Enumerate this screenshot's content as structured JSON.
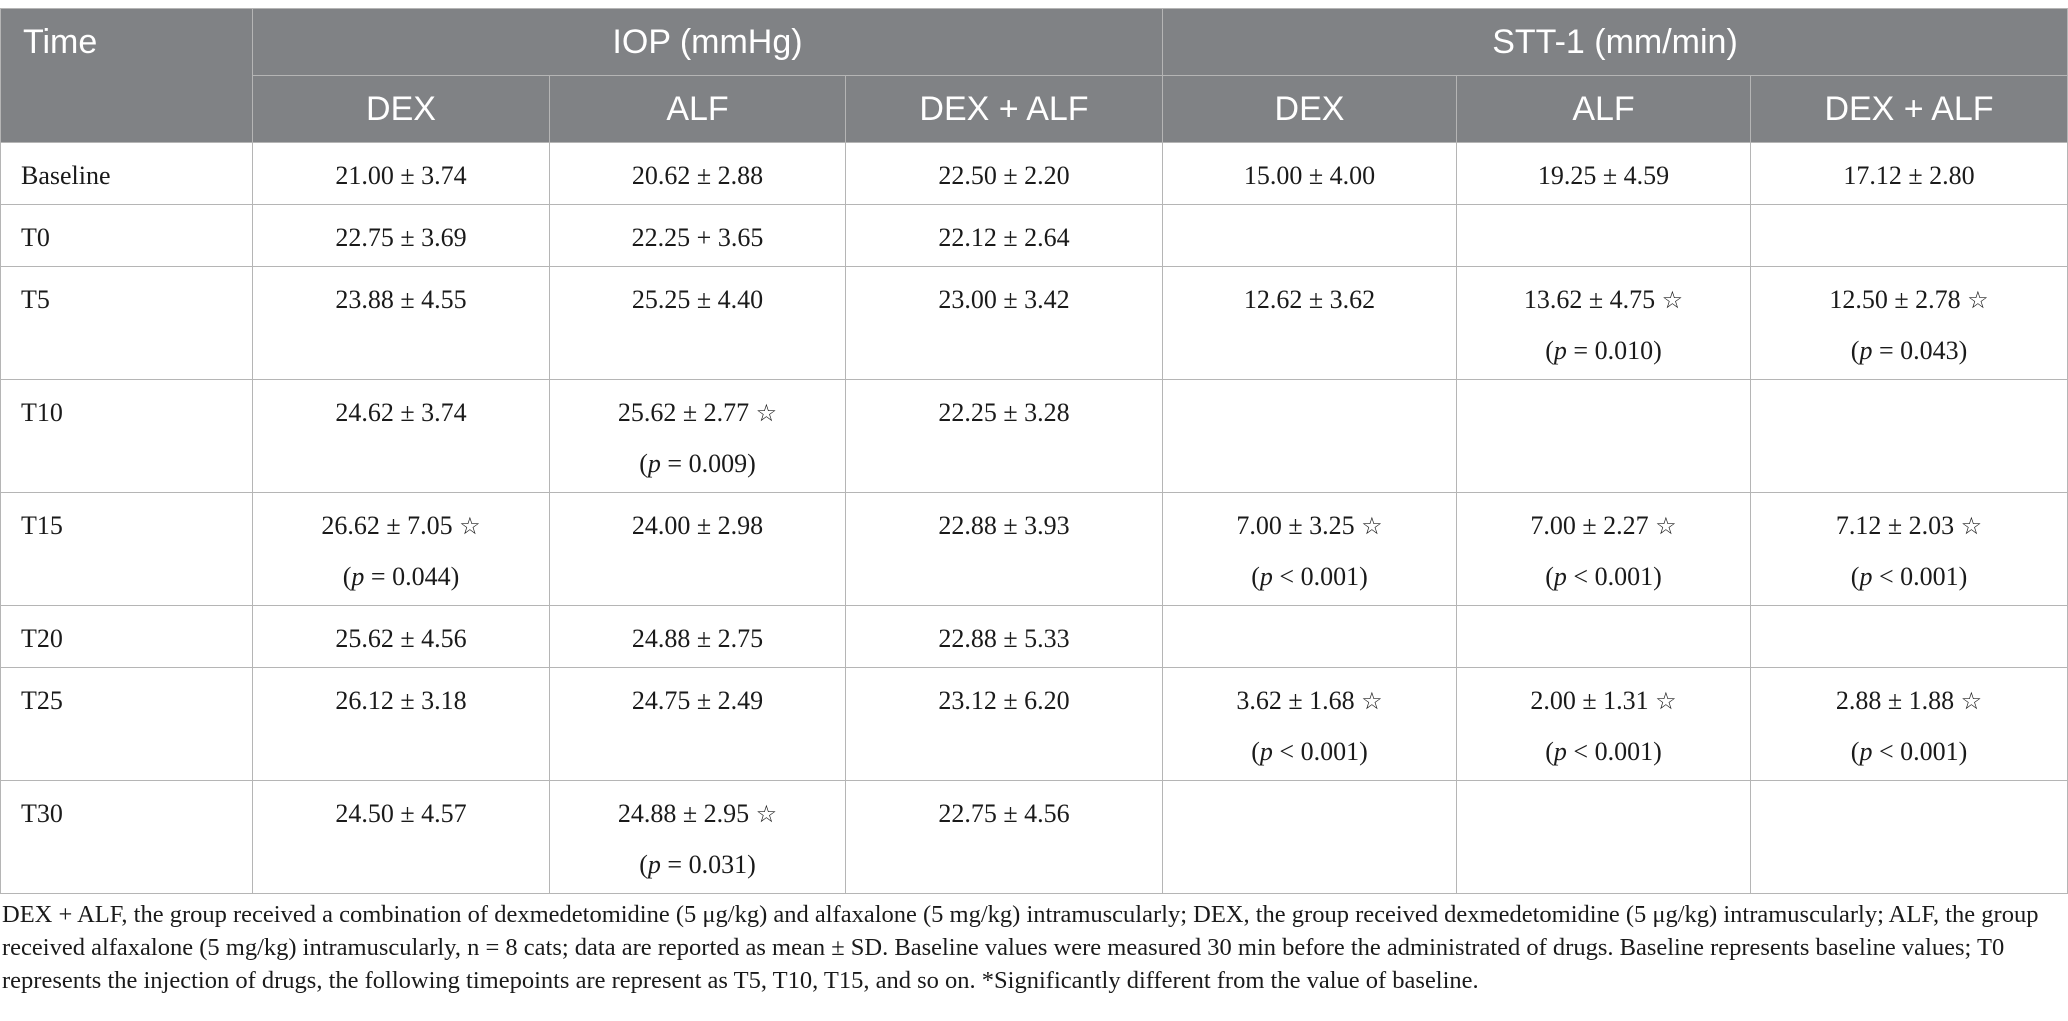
{
  "header": {
    "time": "Time",
    "groups": [
      {
        "label": "IOP (mmHg)"
      },
      {
        "label": "STT-1 (mm/min)"
      }
    ],
    "subcols": [
      "DEX",
      "ALF",
      "DEX + ALF",
      "DEX",
      "ALF",
      "DEX + ALF"
    ]
  },
  "rows": [
    {
      "time": "Baseline",
      "cells": [
        {
          "v": "21.00 ± 3.74"
        },
        {
          "v": "20.62 ± 2.88"
        },
        {
          "v": "22.50 ± 2.20"
        },
        {
          "v": "15.00 ± 4.00"
        },
        {
          "v": "19.25 ± 4.59"
        },
        {
          "v": "17.12 ± 2.80"
        }
      ]
    },
    {
      "time": "T0",
      "cells": [
        {
          "v": "22.75 ± 3.69"
        },
        {
          "v": "22.25 + 3.65"
        },
        {
          "v": "22.12 ± 2.64"
        },
        {
          "v": ""
        },
        {
          "v": ""
        },
        {
          "v": ""
        }
      ]
    },
    {
      "time": "T5",
      "cells": [
        {
          "v": "23.88 ± 4.55"
        },
        {
          "v": "25.25 ± 4.40"
        },
        {
          "v": "23.00 ± 3.42"
        },
        {
          "v": "12.62 ± 3.62"
        },
        {
          "v": "13.62 ± 4.75",
          "sig": true,
          "p_prefix": "(",
          "p_sym": "p",
          "p_val": " = 0.010)"
        },
        {
          "v": "12.50 ± 2.78",
          "sig": true,
          "p_prefix": "(",
          "p_sym": "p",
          "p_val": " = 0.043)"
        }
      ]
    },
    {
      "time": "T10",
      "cells": [
        {
          "v": "24.62 ± 3.74"
        },
        {
          "v": "25.62 ± 2.77",
          "sig": true,
          "p_prefix": "(",
          "p_sym": "p",
          "p_val": " = 0.009)"
        },
        {
          "v": "22.25 ± 3.28"
        },
        {
          "v": ""
        },
        {
          "v": ""
        },
        {
          "v": ""
        }
      ]
    },
    {
      "time": "T15",
      "cells": [
        {
          "v": "26.62 ± 7.05",
          "sig": true,
          "p_prefix": "(",
          "p_sym": "p",
          "p_val": " = 0.044)"
        },
        {
          "v": "24.00 ± 2.98"
        },
        {
          "v": "22.88 ± 3.93"
        },
        {
          "v": "7.00 ± 3.25",
          "sig": true,
          "p_prefix": "(",
          "p_sym": "p",
          "p_val": " < 0.001)"
        },
        {
          "v": "7.00 ± 2.27",
          "sig": true,
          "p_prefix": "(",
          "p_sym": "p",
          "p_val": " < 0.001)"
        },
        {
          "v": "7.12 ± 2.03",
          "sig": true,
          "p_prefix": "(",
          "p_sym": "p",
          "p_val": " < 0.001)"
        }
      ]
    },
    {
      "time": "T20",
      "cells": [
        {
          "v": "25.62 ± 4.56"
        },
        {
          "v": "24.88 ± 2.75"
        },
        {
          "v": "22.88 ± 5.33"
        },
        {
          "v": ""
        },
        {
          "v": ""
        },
        {
          "v": ""
        }
      ]
    },
    {
      "time": "T25",
      "cells": [
        {
          "v": "26.12 ± 3.18"
        },
        {
          "v": "24.75 ± 2.49"
        },
        {
          "v": "23.12 ± 6.20"
        },
        {
          "v": "3.62 ± 1.68",
          "sig": true,
          "p_prefix": "(",
          "p_sym": "p",
          "p_val": " < 0.001)"
        },
        {
          "v": "2.00 ± 1.31",
          "sig": true,
          "p_prefix": "(",
          "p_sym": "p",
          "p_val": " < 0.001)"
        },
        {
          "v": "2.88 ± 1.88",
          "sig": true,
          "p_prefix": "(",
          "p_sym": "p",
          "p_val": " < 0.001)"
        }
      ]
    },
    {
      "time": "T30",
      "cells": [
        {
          "v": "24.50 ± 4.57"
        },
        {
          "v": "24.88 ± 2.95",
          "sig": true,
          "p_prefix": "(",
          "p_sym": "p",
          "p_val": " = 0.031)"
        },
        {
          "v": "22.75 ± 4.56"
        },
        {
          "v": ""
        },
        {
          "v": ""
        },
        {
          "v": ""
        }
      ]
    }
  ],
  "significance_marker": "☆",
  "footnote": "DEX + ALF, the group received a combination of dexmedetomidine (5 μg/kg) and alfaxalone (5 mg/kg) intramuscularly; DEX, the group received dexmedetomidine (5 μg/kg) intramuscularly; ALF, the group received alfaxalone (5 mg/kg) intramuscularly, n = 8 cats; data are reported as mean ± SD. Baseline values were measured 30 min before the administrated of drugs. Baseline represents baseline values; T0 represents the injection of drugs, the following timepoints are represent as T5, T10, T15, and so on. *Significantly different from the value of baseline."
}
